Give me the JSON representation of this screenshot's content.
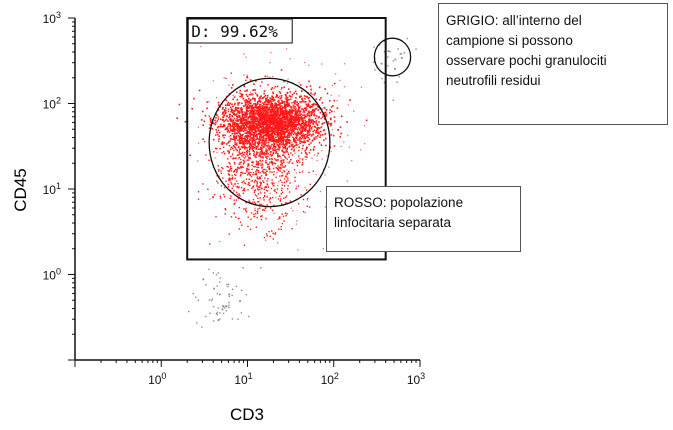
{
  "chart_data": {
    "type": "scatter",
    "xlabel": "CD3",
    "ylabel": "CD45",
    "x_scale": "log",
    "y_scale": "log",
    "xlim": [
      0.1,
      1000
    ],
    "ylim": [
      0.1,
      1000
    ],
    "x_ticks": [
      "10^0",
      "10^1",
      "10^2",
      "10^3"
    ],
    "y_ticks": [
      "10^0",
      "10^1",
      "10^2",
      "10^3"
    ],
    "gate": {
      "label": "D: 99.62%",
      "x_range": [
        2,
        400
      ],
      "y_range": [
        1.5,
        1000
      ]
    },
    "series": [
      {
        "name": "ROSSO",
        "color": "#ff1a1a",
        "points": [
          [
            15,
            62
          ],
          [
            25,
            58
          ],
          [
            12,
            55
          ],
          [
            30,
            80
          ],
          [
            20,
            75
          ],
          [
            40,
            70
          ],
          [
            9,
            40
          ],
          [
            8,
            30
          ],
          [
            10,
            20
          ],
          [
            14,
            12
          ],
          [
            18,
            8
          ],
          [
            6,
            15
          ],
          [
            50,
            95
          ],
          [
            60,
            100
          ],
          [
            22,
            45
          ],
          [
            35,
            110
          ],
          [
            7,
            60
          ],
          [
            28,
            35
          ],
          [
            45,
            40
          ],
          [
            11,
            85
          ]
        ]
      },
      {
        "name": "GRIGIO",
        "color": "#8c8c8c",
        "points": [
          [
            350,
            300
          ],
          [
            420,
            420
          ],
          [
            500,
            260
          ],
          [
            330,
            500
          ],
          [
            600,
            350
          ],
          [
            380,
            180
          ],
          [
            4,
            0.7
          ],
          [
            5,
            0.4
          ],
          [
            6,
            0.6
          ],
          [
            3,
            0.9
          ],
          [
            8,
            0.5
          ],
          [
            4.5,
            0.3
          ]
        ]
      }
    ],
    "circles": [
      {
        "name": "ROSSO",
        "cx": 18,
        "cy": 35,
        "rx_decades": 0.7,
        "ry_decades": 0.75
      },
      {
        "name": "GRIGIO",
        "cx": 480,
        "cy": 350,
        "rx_decades": 0.21,
        "ry_decades": 0.22
      }
    ]
  },
  "annotations": {
    "grey": [
      "GRIGIO: all’interno del",
      "campione si possono",
      "osservare pochi granulociti",
      "neutrofili residui"
    ],
    "red": [
      "ROSSO: popolazione",
      "linfocitaria separata"
    ]
  }
}
